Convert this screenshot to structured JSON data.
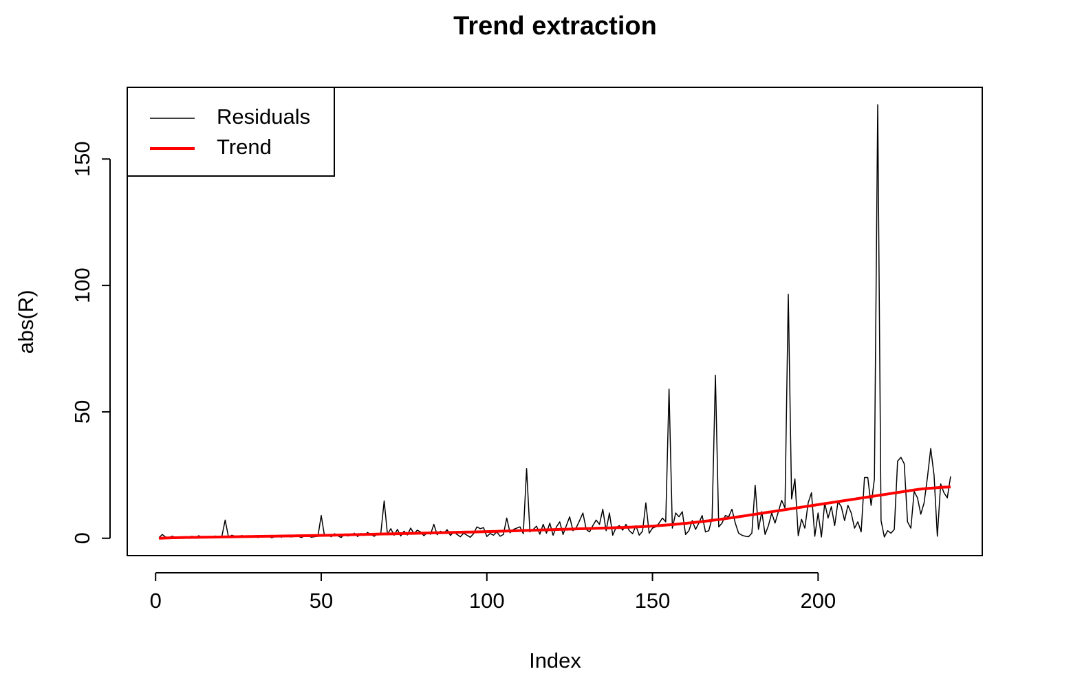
{
  "chart_data": {
    "type": "line",
    "title": "Trend extraction",
    "x_label": "Index",
    "y_label": "abs(R)",
    "x": [
      1,
      2,
      3,
      4,
      5,
      6,
      7,
      8,
      9,
      10,
      11,
      12,
      13,
      14,
      15,
      16,
      17,
      18,
      19,
      20,
      21,
      22,
      23,
      24,
      25,
      26,
      27,
      28,
      29,
      30,
      31,
      32,
      33,
      34,
      35,
      36,
      37,
      38,
      39,
      40,
      41,
      42,
      43,
      44,
      45,
      46,
      47,
      48,
      49,
      50,
      51,
      52,
      53,
      54,
      55,
      56,
      57,
      58,
      59,
      60,
      61,
      62,
      63,
      64,
      65,
      66,
      67,
      68,
      69,
      70,
      71,
      72,
      73,
      74,
      75,
      76,
      77,
      78,
      79,
      80,
      81,
      82,
      83,
      84,
      85,
      86,
      87,
      88,
      89,
      90,
      91,
      92,
      93,
      94,
      95,
      96,
      97,
      98,
      99,
      100,
      101,
      102,
      103,
      104,
      105,
      106,
      107,
      108,
      109,
      110,
      111,
      112,
      113,
      114,
      115,
      116,
      117,
      118,
      119,
      120,
      121,
      122,
      123,
      124,
      125,
      126,
      127,
      128,
      129,
      130,
      131,
      132,
      133,
      134,
      135,
      136,
      137,
      138,
      139,
      140,
      141,
      142,
      143,
      144,
      145,
      146,
      147,
      148,
      149,
      150,
      151,
      152,
      153,
      154,
      155,
      156,
      157,
      158,
      159,
      160,
      161,
      162,
      163,
      164,
      165,
      166,
      167,
      168,
      169,
      170,
      171,
      172,
      173,
      174,
      175,
      176,
      177,
      178,
      179,
      180,
      181,
      182,
      183,
      184,
      185,
      186,
      187,
      188,
      189,
      190,
      191,
      192,
      193,
      194,
      195,
      196,
      197,
      198,
      199,
      200,
      201,
      202,
      203,
      204,
      205,
      206,
      207,
      208,
      209,
      210,
      211,
      212,
      213,
      214,
      215,
      216,
      217,
      218,
      219,
      220,
      221,
      222,
      223,
      224,
      225,
      226,
      227,
      228,
      229,
      230,
      231,
      232,
      233,
      234,
      235,
      236,
      237,
      238,
      239,
      240
    ],
    "series": [
      {
        "name": "Residuals",
        "color": "#000000",
        "width": 1.5,
        "values": [
          0.2,
          1.5,
          0.5,
          0.3,
          0.8,
          0.4,
          0.2,
          0.6,
          0.3,
          0.5,
          0.8,
          0.2,
          1.0,
          0.4,
          0.6,
          0.3,
          0.5,
          0.9,
          0.2,
          0.7,
          7.2,
          0.5,
          1.2,
          0.8,
          0.3,
          1.1,
          0.6,
          0.4,
          0.9,
          0.5,
          0.3,
          0.8,
          0.5,
          1.0,
          0.2,
          0.6,
          0.9,
          0.4,
          1.3,
          0.7,
          0.5,
          1.1,
          0.8,
          0.3,
          0.9,
          1.2,
          0.4,
          0.6,
          0.8,
          9.0,
          0.8,
          1.5,
          0.6,
          1.8,
          1.0,
          0.3,
          1.6,
          0.9,
          1.2,
          2.0,
          0.7,
          1.9,
          1.1,
          2.3,
          1.4,
          0.8,
          1.7,
          2.1,
          14.8,
          1.5,
          3.8,
          1.2,
          3.5,
          0.9,
          2.8,
          1.3,
          4.0,
          1.8,
          3.2,
          2.5,
          1.0,
          2.2,
          1.6,
          5.5,
          1.4,
          2.8,
          1.9,
          3.4,
          1.1,
          2.6,
          1.5,
          0.6,
          2.0,
          1.2,
          0.4,
          1.8,
          4.5,
          3.8,
          4.2,
          0.7,
          1.9,
          1.2,
          2.5,
          0.8,
          1.5,
          8.0,
          2.2,
          3.5,
          4.0,
          4.5,
          1.8,
          27.5,
          2.5,
          3.5,
          4.8,
          1.6,
          5.5,
          2.0,
          6.0,
          1.2,
          4.5,
          6.5,
          1.5,
          5.0,
          8.5,
          3.0,
          4.2,
          7.0,
          10.0,
          3.5,
          2.5,
          5.0,
          7.2,
          5.5,
          11.5,
          3.0,
          10.0,
          1.2,
          4.2,
          5.0,
          3.2,
          5.5,
          3.0,
          1.8,
          5.0,
          1.2,
          2.8,
          14.0,
          2.0,
          4.0,
          4.5,
          6.0,
          8.0,
          6.5,
          59.0,
          4.0,
          10.0,
          8.5,
          10.5,
          1.5,
          3.0,
          7.0,
          3.5,
          6.0,
          9.0,
          2.5,
          3.0,
          8.0,
          64.5,
          4.5,
          6.0,
          9.0,
          8.5,
          11.5,
          6.0,
          2.0,
          1.2,
          0.8,
          0.6,
          2.0,
          21.0,
          3.5,
          10.5,
          1.5,
          5.0,
          10.0,
          6.0,
          10.5,
          15.0,
          12.0,
          96.5,
          15.5,
          23.5,
          1.0,
          7.5,
          4.0,
          14.0,
          18.0,
          0.8,
          10.0,
          0.5,
          14.0,
          8.0,
          12.5,
          5.0,
          14.5,
          12.5,
          7.0,
          13.0,
          10.0,
          4.0,
          6.5,
          2.5,
          24.0,
          24.0,
          13.0,
          23.5,
          171.5,
          7.0,
          0.5,
          3.0,
          2.0,
          3.5,
          30.5,
          32.0,
          29.5,
          6.5,
          4.0,
          18.5,
          16.0,
          9.5,
          14.0,
          24.0,
          35.5,
          25.0,
          0.8,
          21.5,
          18.0,
          16.0,
          24.5
        ]
      },
      {
        "name": "Trend",
        "color": "#ff0000",
        "width": 4,
        "values": [
          0,
          0.05,
          0.1,
          0.15,
          0.2,
          0.22,
          0.25,
          0.27,
          0.3,
          0.32,
          0.34,
          0.36,
          0.38,
          0.4,
          0.42,
          0.44,
          0.46,
          0.48,
          0.5,
          0.52,
          0.54,
          0.56,
          0.58,
          0.6,
          0.62,
          0.64,
          0.66,
          0.68,
          0.7,
          0.72,
          0.74,
          0.76,
          0.78,
          0.8,
          0.82,
          0.84,
          0.86,
          0.88,
          0.9,
          0.92,
          0.94,
          0.96,
          0.98,
          1.0,
          1.02,
          1.04,
          1.06,
          1.08,
          1.1,
          1.12,
          1.15,
          1.18,
          1.21,
          1.24,
          1.27,
          1.3,
          1.33,
          1.36,
          1.39,
          1.42,
          1.45,
          1.48,
          1.51,
          1.54,
          1.57,
          1.6,
          1.63,
          1.66,
          1.69,
          1.72,
          1.75,
          1.78,
          1.81,
          1.84,
          1.87,
          1.9,
          1.93,
          1.96,
          1.99,
          2.02,
          2.05,
          2.08,
          2.11,
          2.14,
          2.17,
          2.2,
          2.23,
          2.26,
          2.29,
          2.32,
          2.35,
          2.38,
          2.41,
          2.44,
          2.47,
          2.5,
          2.53,
          2.56,
          2.59,
          2.62,
          2.66,
          2.7,
          2.74,
          2.78,
          2.82,
          2.86,
          2.9,
          2.94,
          2.98,
          3.02,
          3.06,
          3.1,
          3.14,
          3.18,
          3.22,
          3.26,
          3.3,
          3.34,
          3.38,
          3.42,
          3.46,
          3.5,
          3.54,
          3.58,
          3.62,
          3.66,
          3.7,
          3.74,
          3.78,
          3.82,
          3.86,
          3.9,
          3.94,
          3.98,
          4.02,
          4.06,
          4.1,
          4.14,
          4.18,
          4.22,
          4.27,
          4.32,
          4.37,
          4.42,
          4.48,
          4.54,
          4.6,
          4.67,
          4.74,
          4.82,
          4.9,
          5.0,
          5.1,
          5.2,
          5.3,
          5.42,
          5.54,
          5.66,
          5.78,
          5.9,
          6.04,
          6.18,
          6.32,
          6.46,
          6.6,
          6.76,
          6.92,
          7.08,
          7.24,
          7.4,
          7.58,
          7.76,
          7.94,
          8.12,
          8.3,
          8.5,
          8.7,
          8.9,
          9.1,
          9.3,
          9.5,
          9.7,
          9.9,
          10.1,
          10.3,
          10.5,
          10.7,
          10.9,
          11.1,
          11.3,
          11.5,
          11.7,
          11.9,
          12.1,
          12.3,
          12.5,
          12.7,
          12.9,
          13.1,
          13.3,
          13.5,
          13.7,
          13.9,
          14.1,
          14.3,
          14.5,
          14.7,
          14.9,
          15.1,
          15.3,
          15.5,
          15.7,
          15.9,
          16.1,
          16.3,
          16.5,
          16.7,
          16.9,
          17.1,
          17.3,
          17.5,
          17.7,
          17.9,
          18.1,
          18.3,
          18.5,
          18.7,
          18.9,
          19.1,
          19.3,
          19.45,
          19.6,
          19.7,
          19.8,
          19.9,
          20.0,
          20.1,
          20.2,
          20.25,
          20.3
        ]
      }
    ],
    "xlim": [
      -8.56,
      249.56
    ],
    "ylim": [
      -6.86,
      178.36
    ],
    "xticks": [
      0,
      50,
      100,
      150,
      200
    ],
    "yticks": [
      0,
      50,
      100,
      150
    ],
    "legend": "top-left",
    "grid": false
  }
}
